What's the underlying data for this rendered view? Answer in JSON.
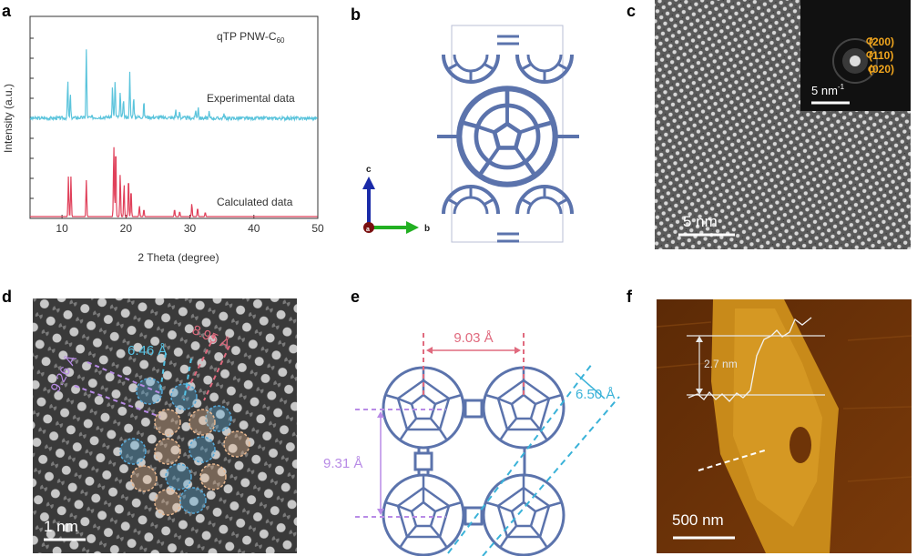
{
  "panels": {
    "a": {
      "letter": "a",
      "chart_data": {
        "type": "line",
        "title": "qTP PNW-C60",
        "title_main": "qTP PNW-C",
        "title_sub": "60",
        "xlabel": "2 Theta (degree)",
        "ylabel": "Intensity (a.u.)",
        "xlim": [
          5,
          50
        ],
        "x_ticks": [
          "10",
          "20",
          "30",
          "40",
          "50"
        ],
        "x_tick_values": [
          10,
          20,
          30,
          40,
          50
        ],
        "series": [
          {
            "name": "Experimental data",
            "color": "#5bc4dc",
            "peaks": [
              [
                10.9,
                0.55
              ],
              [
                11.3,
                0.35
              ],
              [
                13.8,
                1.0
              ],
              [
                17.9,
                0.45
              ],
              [
                18.3,
                0.55
              ],
              [
                19.1,
                0.35
              ],
              [
                19.6,
                0.25
              ],
              [
                20.6,
                0.65
              ],
              [
                21.2,
                0.3
              ],
              [
                22.8,
                0.22
              ],
              [
                27.8,
                0.12
              ],
              [
                28.4,
                0.1
              ],
              [
                30.9,
                0.13
              ],
              [
                31.3,
                0.18
              ],
              [
                33.0,
                0.08
              ],
              [
                35.3,
                0.07
              ]
            ]
          },
          {
            "name": "Calculated data",
            "color": "#e0405a",
            "peaks": [
              [
                11.0,
                0.55
              ],
              [
                11.4,
                0.55
              ],
              [
                13.8,
                0.5
              ],
              [
                18.1,
                1.0
              ],
              [
                18.4,
                1.0
              ],
              [
                19.1,
                0.6
              ],
              [
                19.7,
                0.45
              ],
              [
                20.4,
                0.55
              ],
              [
                20.8,
                0.38
              ],
              [
                22.1,
                0.15
              ],
              [
                22.8,
                0.1
              ],
              [
                27.6,
                0.1
              ],
              [
                28.4,
                0.07
              ],
              [
                30.3,
                0.18
              ],
              [
                31.2,
                0.12
              ],
              [
                32.4,
                0.06
              ]
            ]
          }
        ]
      }
    },
    "b": {
      "letter": "b",
      "axis_c": "c",
      "axis_b": "b",
      "axis_a": "a"
    },
    "c": {
      "letter": "c",
      "fft_scale": "5 nm",
      "fft_sup": "-1",
      "planes": [
        "(200)",
        "(110)",
        "(020)"
      ],
      "scale": "5 nm"
    },
    "d": {
      "letter": "d",
      "d1": "8.95 Å",
      "d2": "6.46 Å",
      "d3": "9.26 Å",
      "scale": "1 nm"
    },
    "e": {
      "letter": "e",
      "d_top": "9.03 Å",
      "d_right": "6.50 Å",
      "d_left": "9.31 Å"
    },
    "f": {
      "letter": "f",
      "height": "2.7 nm",
      "scale": "500 nm"
    }
  },
  "colors": {
    "experimental": "#5bc4dc",
    "calculated": "#e0405a",
    "structure": "#5b73ac",
    "plane_label": "#f0a51e"
  }
}
